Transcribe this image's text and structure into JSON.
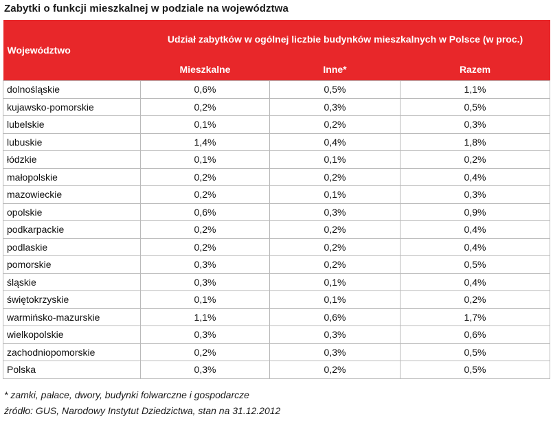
{
  "title": "Zabytki o funkcji mieszkalnej w podziale na województwa",
  "header": {
    "region": "Województwo",
    "group": "Udział zabytków w ogólnej liczbie budynków mieszkalnych w Polsce (w proc.)",
    "columns": [
      "Mieszkalne",
      "Inne*",
      "Razem"
    ]
  },
  "rows": [
    [
      "dolnośląskie",
      "0,6%",
      "0,5%",
      "1,1%"
    ],
    [
      "kujawsko-pomorskie",
      "0,2%",
      "0,3%",
      "0,5%"
    ],
    [
      "lubelskie",
      "0,1%",
      "0,2%",
      "0,3%"
    ],
    [
      "lubuskie",
      "1,4%",
      "0,4%",
      "1,8%"
    ],
    [
      "łódzkie",
      "0,1%",
      "0,1%",
      "0,2%"
    ],
    [
      "małopolskie",
      "0,2%",
      "0,2%",
      "0,4%"
    ],
    [
      "mazowieckie",
      "0,2%",
      "0,1%",
      "0,3%"
    ],
    [
      "opolskie",
      "0,6%",
      "0,3%",
      "0,9%"
    ],
    [
      "podkarpackie",
      "0,2%",
      "0,2%",
      "0,4%"
    ],
    [
      "podlaskie",
      "0,2%",
      "0,2%",
      "0,4%"
    ],
    [
      "pomorskie",
      "0,3%",
      "0,2%",
      "0,5%"
    ],
    [
      "śląskie",
      "0,3%",
      "0,1%",
      "0,4%"
    ],
    [
      "świętokrzyskie",
      "0,1%",
      "0,1%",
      "0,2%"
    ],
    [
      "warmińsko-mazurskie",
      "1,1%",
      "0,6%",
      "1,7%"
    ],
    [
      "wielkopolskie",
      "0,3%",
      "0,3%",
      "0,6%"
    ],
    [
      "zachodniopomorskie",
      "0,2%",
      "0,3%",
      "0,5%"
    ],
    [
      "Polska",
      "0,3%",
      "0,2%",
      "0,5%"
    ]
  ],
  "footnote": "* zamki, pałace, dwory, budynki folwarczne i gospodarcze",
  "source": "źródło: GUS, Narodowy Instytut Dziedzictwa, stan na 31.12.2012",
  "colors": {
    "header_bg": "#e8272a",
    "header_text": "#ffffff",
    "grid": "#b9b9b9"
  }
}
